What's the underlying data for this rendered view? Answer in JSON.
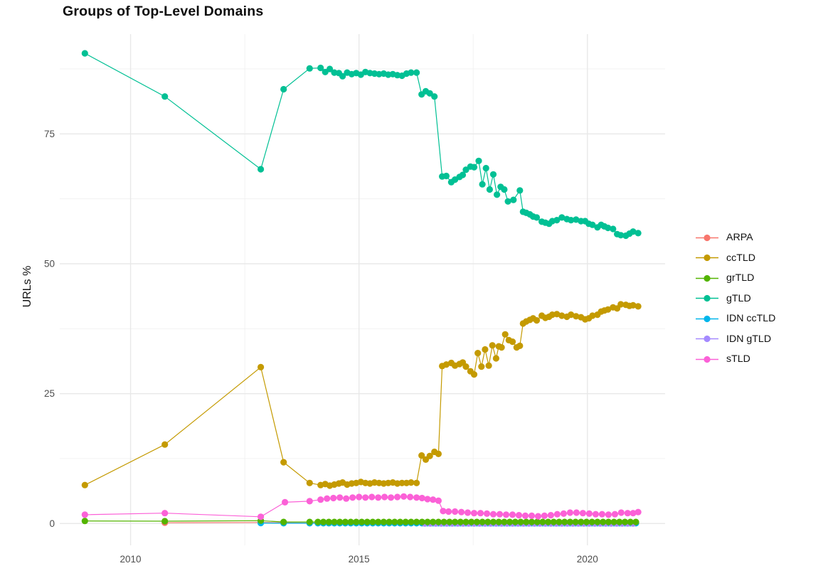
{
  "chart_data": {
    "type": "line",
    "title": "Groups of Top-Level Domains",
    "xlabel": "",
    "ylabel": "URLs %",
    "legend_position": "right",
    "grid": true,
    "background": "#ffffff",
    "gridline_major_color": "#e8e8e8",
    "gridline_minor_color": "#f1f1f1",
    "tick_label_color": "#4d4d4d",
    "xlim": [
      2008.45,
      2021.7
    ],
    "ylim": [
      -4.2,
      94.2
    ],
    "x_ticks": [
      2010,
      2015,
      2020
    ],
    "y_ticks": [
      0,
      25,
      50,
      75
    ],
    "x_minor": [
      2012.5,
      2017.5
    ],
    "y_minor": [
      12.5,
      37.5,
      62.5,
      87.5
    ],
    "series": [
      {
        "name": "ARPA",
        "color": "#F8766D",
        "z": 1,
        "points": [
          [
            2010.75,
            0.15
          ],
          [
            2012.85,
            0.2
          ],
          [
            2013.35,
            0.15
          ],
          [
            2013.92,
            0.1
          ]
        ],
        "flat": {
          "from": 2014.1,
          "to": 2021.11,
          "step": 0.12,
          "value": 0.1
        }
      },
      {
        "name": "ccTLD",
        "color": "#C49A00",
        "z": 4,
        "points": [
          [
            2009.0,
            7.4
          ],
          [
            2010.75,
            15.2
          ],
          [
            2012.85,
            30.1
          ],
          [
            2013.35,
            11.8
          ],
          [
            2013.92,
            7.8
          ],
          [
            2014.16,
            7.4
          ],
          [
            2014.26,
            7.6
          ],
          [
            2014.36,
            7.3
          ],
          [
            2014.46,
            7.5
          ],
          [
            2014.56,
            7.7
          ],
          [
            2014.64,
            7.9
          ],
          [
            2014.74,
            7.5
          ],
          [
            2014.84,
            7.7
          ],
          [
            2014.94,
            7.8
          ],
          [
            2015.04,
            8.0
          ],
          [
            2015.14,
            7.8
          ],
          [
            2015.24,
            7.7
          ],
          [
            2015.34,
            7.9
          ],
          [
            2015.44,
            7.8
          ],
          [
            2015.54,
            7.7
          ],
          [
            2015.64,
            7.8
          ],
          [
            2015.74,
            7.9
          ],
          [
            2015.84,
            7.7
          ],
          [
            2015.94,
            7.8
          ],
          [
            2016.04,
            7.8
          ],
          [
            2016.14,
            7.9
          ],
          [
            2016.26,
            7.8
          ],
          [
            2016.37,
            13.1
          ],
          [
            2016.46,
            12.3
          ],
          [
            2016.55,
            13.0
          ],
          [
            2016.65,
            13.8
          ],
          [
            2016.74,
            13.4
          ],
          [
            2016.82,
            30.3
          ],
          [
            2016.91,
            30.6
          ],
          [
            2017.02,
            30.9
          ],
          [
            2017.1,
            30.4
          ],
          [
            2017.2,
            30.7
          ],
          [
            2017.27,
            31.0
          ],
          [
            2017.34,
            30.2
          ],
          [
            2017.44,
            29.3
          ],
          [
            2017.52,
            28.7
          ],
          [
            2017.6,
            32.8
          ],
          [
            2017.68,
            30.2
          ],
          [
            2017.76,
            33.5
          ],
          [
            2017.84,
            30.4
          ],
          [
            2017.92,
            34.3
          ],
          [
            2018.0,
            31.8
          ],
          [
            2018.06,
            34.1
          ],
          [
            2018.12,
            33.9
          ],
          [
            2018.2,
            36.4
          ],
          [
            2018.28,
            35.3
          ],
          [
            2018.36,
            35.0
          ],
          [
            2018.45,
            33.9
          ],
          [
            2018.52,
            34.2
          ],
          [
            2018.59,
            38.5
          ],
          [
            2018.66,
            38.9
          ],
          [
            2018.74,
            39.2
          ],
          [
            2018.81,
            39.5
          ],
          [
            2018.89,
            39.1
          ],
          [
            2019.0,
            40.0
          ],
          [
            2019.08,
            39.6
          ],
          [
            2019.16,
            39.8
          ],
          [
            2019.23,
            40.2
          ],
          [
            2019.33,
            40.3
          ],
          [
            2019.44,
            40.0
          ],
          [
            2019.55,
            39.8
          ],
          [
            2019.64,
            40.2
          ],
          [
            2019.75,
            39.9
          ],
          [
            2019.86,
            39.7
          ],
          [
            2019.95,
            39.3
          ],
          [
            2020.03,
            39.5
          ],
          [
            2020.11,
            40.0
          ],
          [
            2020.22,
            40.2
          ],
          [
            2020.3,
            40.8
          ],
          [
            2020.37,
            41.0
          ],
          [
            2020.45,
            41.2
          ],
          [
            2020.56,
            41.6
          ],
          [
            2020.65,
            41.4
          ],
          [
            2020.73,
            42.2
          ],
          [
            2020.84,
            42.1
          ],
          [
            2020.92,
            41.9
          ],
          [
            2021.0,
            42.0
          ],
          [
            2021.11,
            41.8
          ]
        ]
      },
      {
        "name": "grTLD",
        "color": "#53B400",
        "z": 5,
        "points": [
          [
            2009.0,
            0.5
          ],
          [
            2010.75,
            0.45
          ],
          [
            2012.85,
            0.55
          ],
          [
            2013.35,
            0.3
          ],
          [
            2013.92,
            0.3
          ]
        ],
        "flat": {
          "from": 2014.1,
          "to": 2021.11,
          "step": 0.12,
          "value": 0.3
        }
      },
      {
        "name": "gTLD",
        "color": "#00C094",
        "z": 6,
        "points": [
          [
            2009.0,
            90.5
          ],
          [
            2010.75,
            82.2
          ],
          [
            2012.85,
            68.2
          ],
          [
            2013.35,
            83.6
          ],
          [
            2013.92,
            87.6
          ],
          [
            2014.16,
            87.7
          ],
          [
            2014.26,
            86.9
          ],
          [
            2014.36,
            87.5
          ],
          [
            2014.46,
            86.8
          ],
          [
            2014.56,
            86.7
          ],
          [
            2014.64,
            86.1
          ],
          [
            2014.74,
            86.8
          ],
          [
            2014.84,
            86.5
          ],
          [
            2014.94,
            86.7
          ],
          [
            2015.04,
            86.4
          ],
          [
            2015.14,
            86.9
          ],
          [
            2015.24,
            86.7
          ],
          [
            2015.34,
            86.6
          ],
          [
            2015.44,
            86.5
          ],
          [
            2015.54,
            86.6
          ],
          [
            2015.64,
            86.4
          ],
          [
            2015.74,
            86.5
          ],
          [
            2015.84,
            86.3
          ],
          [
            2015.94,
            86.2
          ],
          [
            2016.04,
            86.6
          ],
          [
            2016.14,
            86.8
          ],
          [
            2016.26,
            86.8
          ],
          [
            2016.37,
            82.6
          ],
          [
            2016.46,
            83.2
          ],
          [
            2016.55,
            82.8
          ],
          [
            2016.65,
            82.2
          ],
          [
            2016.82,
            66.8
          ],
          [
            2016.91,
            66.9
          ],
          [
            2017.02,
            65.7
          ],
          [
            2017.1,
            66.2
          ],
          [
            2017.2,
            66.7
          ],
          [
            2017.27,
            67.1
          ],
          [
            2017.34,
            68.1
          ],
          [
            2017.44,
            68.7
          ],
          [
            2017.52,
            68.6
          ],
          [
            2017.62,
            69.8
          ],
          [
            2017.7,
            65.3
          ],
          [
            2017.78,
            68.4
          ],
          [
            2017.86,
            64.3
          ],
          [
            2017.94,
            67.2
          ],
          [
            2018.02,
            63.3
          ],
          [
            2018.1,
            64.8
          ],
          [
            2018.18,
            64.3
          ],
          [
            2018.26,
            62.0
          ],
          [
            2018.38,
            62.3
          ],
          [
            2018.52,
            64.1
          ],
          [
            2018.59,
            60.0
          ],
          [
            2018.66,
            59.8
          ],
          [
            2018.74,
            59.5
          ],
          [
            2018.81,
            59.1
          ],
          [
            2018.89,
            58.9
          ],
          [
            2019.0,
            58.1
          ],
          [
            2019.08,
            57.9
          ],
          [
            2019.16,
            57.7
          ],
          [
            2019.23,
            58.2
          ],
          [
            2019.33,
            58.4
          ],
          [
            2019.44,
            58.9
          ],
          [
            2019.55,
            58.6
          ],
          [
            2019.64,
            58.4
          ],
          [
            2019.75,
            58.5
          ],
          [
            2019.86,
            58.2
          ],
          [
            2019.95,
            58.2
          ],
          [
            2020.03,
            57.7
          ],
          [
            2020.11,
            57.5
          ],
          [
            2020.22,
            57.0
          ],
          [
            2020.3,
            57.5
          ],
          [
            2020.37,
            57.2
          ],
          [
            2020.45,
            56.9
          ],
          [
            2020.56,
            56.7
          ],
          [
            2020.65,
            55.7
          ],
          [
            2020.73,
            55.5
          ],
          [
            2020.84,
            55.4
          ],
          [
            2020.92,
            55.8
          ],
          [
            2021.0,
            56.2
          ],
          [
            2021.11,
            55.9
          ]
        ]
      },
      {
        "name": "IDN ccTLD",
        "color": "#00B6EB",
        "z": 2,
        "points": [
          [
            2012.85,
            0.1
          ],
          [
            2013.35,
            0.05
          ],
          [
            2013.92,
            0.05
          ]
        ],
        "flat": {
          "from": 2014.1,
          "to": 2021.11,
          "step": 0.12,
          "value": 0.05
        }
      },
      {
        "name": "IDN gTLD",
        "color": "#A58AFF",
        "z": 3,
        "points": [],
        "flat": {
          "from": 2016.44,
          "to": 2021.08,
          "step": 0.12,
          "value": 0.0
        }
      },
      {
        "name": "sTLD",
        "color": "#FB61D7",
        "z": 7,
        "points": [
          [
            2009.0,
            1.7
          ],
          [
            2010.75,
            2.0
          ],
          [
            2012.85,
            1.3
          ],
          [
            2013.38,
            4.1
          ],
          [
            2013.92,
            4.3
          ],
          [
            2014.16,
            4.6
          ],
          [
            2014.3,
            4.8
          ],
          [
            2014.44,
            4.9
          ],
          [
            2014.58,
            5.0
          ],
          [
            2014.72,
            4.8
          ],
          [
            2014.86,
            5.0
          ],
          [
            2015.0,
            5.1
          ],
          [
            2015.14,
            5.0
          ],
          [
            2015.28,
            5.1
          ],
          [
            2015.42,
            5.0
          ],
          [
            2015.56,
            5.1
          ],
          [
            2015.7,
            5.0
          ],
          [
            2015.84,
            5.1
          ],
          [
            2015.98,
            5.2
          ],
          [
            2016.12,
            5.1
          ],
          [
            2016.26,
            5.0
          ],
          [
            2016.38,
            4.9
          ],
          [
            2016.5,
            4.7
          ],
          [
            2016.62,
            4.6
          ],
          [
            2016.74,
            4.4
          ],
          [
            2016.84,
            2.4
          ],
          [
            2016.96,
            2.3
          ],
          [
            2017.1,
            2.3
          ],
          [
            2017.24,
            2.2
          ],
          [
            2017.38,
            2.1
          ],
          [
            2017.52,
            2.0
          ],
          [
            2017.66,
            2.0
          ],
          [
            2017.8,
            1.9
          ],
          [
            2017.94,
            1.8
          ],
          [
            2018.08,
            1.8
          ],
          [
            2018.22,
            1.7
          ],
          [
            2018.36,
            1.7
          ],
          [
            2018.5,
            1.6
          ],
          [
            2018.64,
            1.5
          ],
          [
            2018.78,
            1.5
          ],
          [
            2018.92,
            1.4
          ],
          [
            2019.06,
            1.5
          ],
          [
            2019.2,
            1.6
          ],
          [
            2019.34,
            1.8
          ],
          [
            2019.48,
            1.9
          ],
          [
            2019.62,
            2.1
          ],
          [
            2019.76,
            2.1
          ],
          [
            2019.9,
            2.0
          ],
          [
            2020.04,
            1.9
          ],
          [
            2020.18,
            1.8
          ],
          [
            2020.32,
            1.8
          ],
          [
            2020.46,
            1.7
          ],
          [
            2020.6,
            1.8
          ],
          [
            2020.74,
            2.1
          ],
          [
            2020.88,
            2.0
          ],
          [
            2021.0,
            2.0
          ],
          [
            2021.11,
            2.2
          ]
        ]
      }
    ]
  }
}
